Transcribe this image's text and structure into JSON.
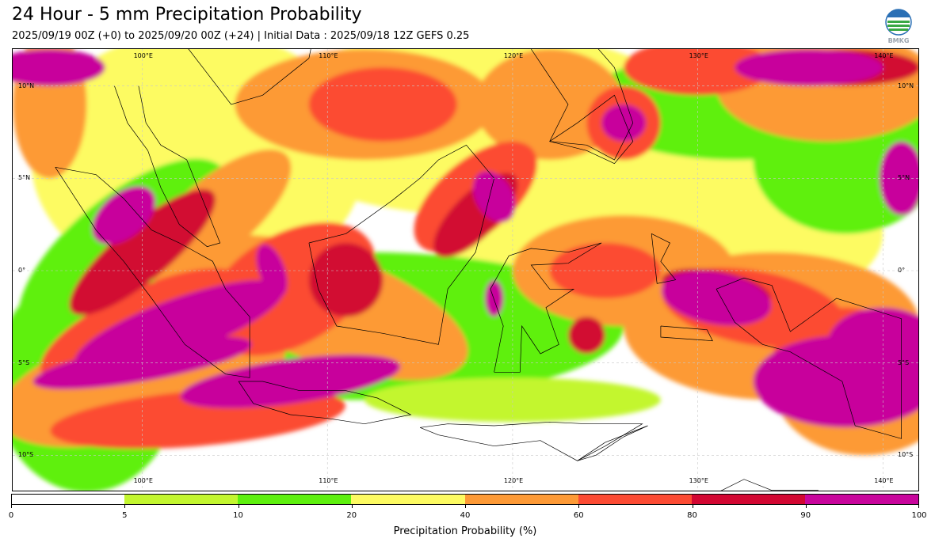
{
  "header": {
    "title": "24 Hour - 5 mm Precipitation Probability",
    "subtitle": "2025/09/19 00Z (+0) to 2025/09/20 00Z (+24) | Initial Data : 2025/09/18 12Z GEFS 0.25"
  },
  "logo": {
    "icon": "bmkg-logo-icon",
    "text": "BMKG"
  },
  "map": {
    "lon_labels": [
      "100°E",
      "110°E",
      "120°E",
      "130°E",
      "140°E"
    ],
    "lat_labels": [
      "10°N",
      "5°N",
      "0°",
      "5°S",
      "10°S"
    ],
    "lon_range": [
      93,
      142
    ],
    "lat_range": [
      -12,
      12
    ]
  },
  "colorbar": {
    "title": "Precipitation Probability (%)",
    "ticks": [
      "0",
      "5",
      "10",
      "20",
      "40",
      "60",
      "80",
      "90",
      "100"
    ],
    "colors": [
      "#ffffff",
      "#c3f62f",
      "#5ef00e",
      "#fdfb62",
      "#fd9a36",
      "#fc4b33",
      "#d20732",
      "#c8059c"
    ]
  }
}
